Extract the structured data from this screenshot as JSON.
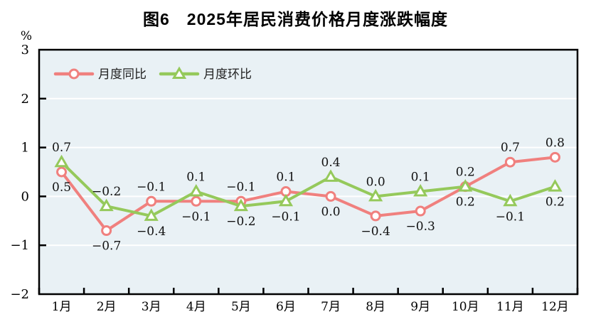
{
  "title": "图6　2025年居民消费价格月度涨跌幅度",
  "chart_data": {
    "type": "line",
    "title": "图6　2025年居民消费价格月度涨跌幅度",
    "categories": [
      "1月",
      "2月",
      "3月",
      "4月",
      "5月",
      "6月",
      "7月",
      "8月",
      "9月",
      "10月",
      "11月",
      "12月"
    ],
    "ylabel": "%",
    "ylim": [
      -2,
      3
    ],
    "y_ticks": [
      {
        "v": 3,
        "label": "3"
      },
      {
        "v": 2,
        "label": "2"
      },
      {
        "v": 1,
        "label": "1"
      },
      {
        "v": 0,
        "label": "0"
      },
      {
        "v": -1,
        "label": "−1"
      },
      {
        "v": -2,
        "label": "−2"
      }
    ],
    "grid": true,
    "gridline_values": [
      2,
      1,
      0,
      -1
    ],
    "legend_position": "top-left-inside",
    "colors": {
      "plot_bg": "#e9f1f5",
      "gridline": "#ffffff",
      "axis": "#000000",
      "tongbi_red": "#f0807e",
      "huanbi_green": "#95c95b"
    },
    "series": [
      {
        "name": "月度同比",
        "marker": "circle",
        "color": "#f0807e",
        "values": [
          0.5,
          -0.7,
          -0.1,
          -0.1,
          -0.1,
          0.1,
          0.0,
          -0.4,
          -0.3,
          0.2,
          0.7,
          0.8
        ],
        "labels": [
          "0.5",
          "−0.7",
          "−0.1",
          "−0.1",
          "−0.1",
          "0.1",
          "0.0",
          "−0.4",
          "−0.3",
          "0.2",
          "0.7",
          "0.8"
        ],
        "label_pos": [
          "below",
          "below",
          "above",
          "below",
          "above",
          "above",
          "below",
          "below",
          "below",
          "below",
          "above",
          "above"
        ]
      },
      {
        "name": "月度环比",
        "marker": "triangle",
        "color": "#95c95b",
        "values": [
          0.7,
          -0.2,
          -0.4,
          0.1,
          -0.2,
          -0.1,
          0.4,
          0.0,
          0.1,
          0.2,
          -0.1,
          0.2
        ],
        "labels": [
          "0.7",
          "−0.2",
          "−0.4",
          "0.1",
          "−0.2",
          "−0.1",
          "0.4",
          "0.0",
          "0.1",
          "0.2",
          "−0.1",
          "0.2"
        ],
        "label_pos": [
          "above",
          "above",
          "below",
          "above",
          "below",
          "below",
          "above",
          "above",
          "above",
          "above",
          "below",
          "below"
        ]
      }
    ]
  }
}
